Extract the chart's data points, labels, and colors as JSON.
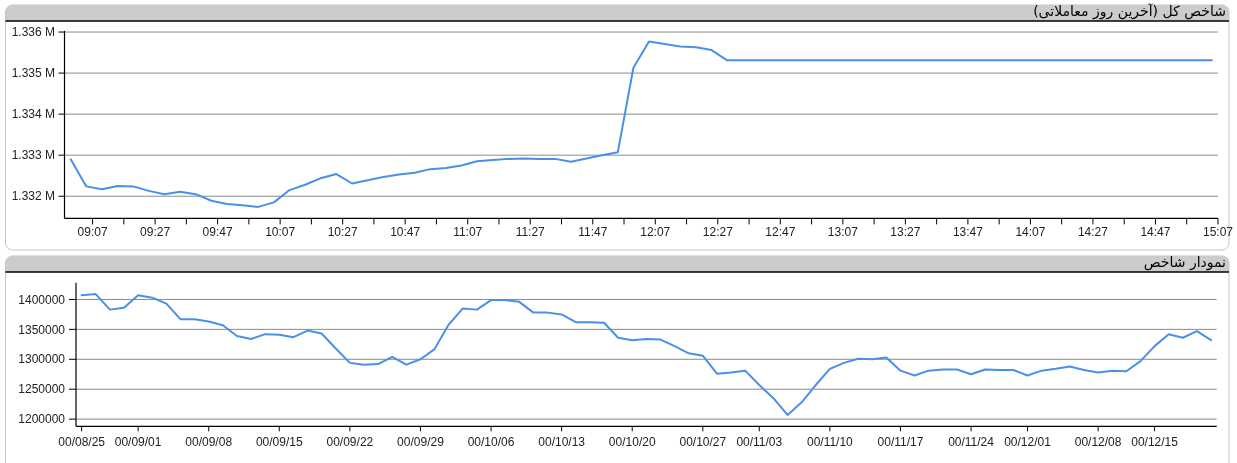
{
  "chart_data": [
    {
      "type": "line",
      "title": "شاخص کل (آخرین روز معاملاتی)",
      "x": [
        9.0,
        9.0833,
        9.1667,
        9.25,
        9.3333,
        9.4167,
        9.5,
        9.5833,
        9.6667,
        9.75,
        9.8333,
        9.9167,
        10.0,
        10.0833,
        10.1667,
        10.25,
        10.3333,
        10.4167,
        10.5,
        10.5833,
        10.6667,
        10.75,
        10.8333,
        10.9167,
        11.0,
        11.0833,
        11.1667,
        11.25,
        11.3333,
        11.4167,
        11.5,
        11.5833,
        11.6667,
        11.75,
        11.8333,
        11.9167,
        12.0,
        12.0833,
        12.1667,
        12.25,
        12.3333,
        12.4167,
        12.5,
        15.0833
      ],
      "series": [
        {
          "color": "#4a90e8",
          "values": [
            1.3329,
            1.33224,
            1.33217,
            1.33225,
            1.33224,
            1.33213,
            1.33205,
            1.33211,
            1.33205,
            1.33189,
            1.33181,
            1.33178,
            1.33174,
            1.33185,
            1.33215,
            1.33228,
            1.33244,
            1.33254,
            1.33231,
            1.33239,
            1.33247,
            1.33253,
            1.33257,
            1.33266,
            1.33269,
            1.33275,
            1.33285,
            1.33288,
            1.33291,
            1.33292,
            1.33291,
            1.33291,
            1.33284,
            1.33292,
            1.333,
            1.33307,
            1.33513,
            1.33577,
            1.33571,
            1.33565,
            1.33563,
            1.33556,
            1.33531,
            1.33531
          ]
        }
      ],
      "xlim": [
        8.967,
        15.1167
      ],
      "xticks": [
        {
          "value": 9.1167,
          "label": "09:07"
        },
        {
          "value": 9.2833,
          "label": null
        },
        {
          "value": 9.45,
          "label": "09:27"
        },
        {
          "value": 9.6167,
          "label": null
        },
        {
          "value": 9.7833,
          "label": "09:47"
        },
        {
          "value": 9.95,
          "label": null
        },
        {
          "value": 10.1167,
          "label": "10:07"
        },
        {
          "value": 10.2833,
          "label": null
        },
        {
          "value": 10.45,
          "label": "10:27"
        },
        {
          "value": 10.6167,
          "label": null
        },
        {
          "value": 10.7833,
          "label": "10:47"
        },
        {
          "value": 10.95,
          "label": null
        },
        {
          "value": 11.1167,
          "label": "11:07"
        },
        {
          "value": 11.2833,
          "label": null
        },
        {
          "value": 11.45,
          "label": "11:27"
        },
        {
          "value": 11.6167,
          "label": null
        },
        {
          "value": 11.7833,
          "label": "11:47"
        },
        {
          "value": 11.95,
          "label": null
        },
        {
          "value": 12.1167,
          "label": "12:07"
        },
        {
          "value": 12.2833,
          "label": null
        },
        {
          "value": 12.45,
          "label": "12:27"
        },
        {
          "value": 12.6167,
          "label": null
        },
        {
          "value": 12.7833,
          "label": "12:47"
        },
        {
          "value": 12.95,
          "label": null
        },
        {
          "value": 13.1167,
          "label": "13:07"
        },
        {
          "value": 13.2833,
          "label": null
        },
        {
          "value": 13.45,
          "label": "13:27"
        },
        {
          "value": 13.6167,
          "label": null
        },
        {
          "value": 13.7833,
          "label": "13:47"
        },
        {
          "value": 13.95,
          "label": null
        },
        {
          "value": 14.1167,
          "label": "14:07"
        },
        {
          "value": 14.2833,
          "label": null
        },
        {
          "value": 14.45,
          "label": "14:27"
        },
        {
          "value": 14.6167,
          "label": null
        },
        {
          "value": 14.7833,
          "label": "14:47"
        },
        {
          "value": 14.95,
          "label": null
        },
        {
          "value": 15.1167,
          "label": "15:07"
        }
      ],
      "ylim": [
        1.33146,
        1.33603
      ],
      "yticks": [
        {
          "value": 1.332,
          "label": "1.332 M"
        },
        {
          "value": 1.333,
          "label": "1.333 M"
        },
        {
          "value": 1.334,
          "label": "1.334 M"
        },
        {
          "value": 1.335,
          "label": "1.335 M"
        },
        {
          "value": 1.336,
          "label": "1.336 M"
        }
      ],
      "grid": "y"
    },
    {
      "type": "line",
      "title": "نمودار شاخص",
      "categories": [
        "00/08/25",
        null,
        null,
        null,
        "00/09/01",
        null,
        null,
        null,
        null,
        "00/09/08",
        null,
        null,
        null,
        null,
        "00/09/15",
        null,
        null,
        null,
        null,
        "00/09/22",
        null,
        null,
        null,
        null,
        "00/09/29",
        null,
        null,
        null,
        null,
        "00/10/06",
        null,
        null,
        null,
        null,
        "00/10/13",
        null,
        null,
        null,
        null,
        "00/10/20",
        null,
        null,
        null,
        null,
        "00/10/27",
        null,
        null,
        null,
        "00/11/03",
        null,
        null,
        null,
        null,
        "00/11/10",
        null,
        null,
        null,
        null,
        "00/11/17",
        null,
        null,
        null,
        null,
        "00/11/24",
        null,
        null,
        null,
        "00/12/01",
        null,
        null,
        null,
        null,
        "00/12/08",
        null,
        null,
        null,
        "00/12/15",
        null,
        null,
        null,
        null
      ],
      "series": [
        {
          "color": "#4a90e8",
          "values": [
            1407000,
            1409000,
            1383000,
            1386000,
            1407000,
            1403000,
            1393000,
            1367000,
            1367000,
            1363000,
            1357000,
            1339000,
            1334000,
            1342000,
            1341000,
            1337000,
            1348000,
            1343000,
            1318000,
            1294000,
            1291000,
            1292000,
            1304000,
            1291000,
            1300000,
            1317000,
            1358000,
            1385000,
            1383000,
            1399000,
            1399000,
            1396000,
            1378000,
            1378000,
            1375000,
            1362000,
            1362000,
            1361000,
            1336000,
            1332000,
            1334000,
            1333000,
            1322000,
            1310000,
            1306000,
            1276000,
            1278000,
            1281000,
            1257000,
            1235000,
            1207000,
            1228000,
            1257000,
            1284000,
            1294000,
            1301000,
            1300000,
            1303000,
            1281000,
            1273000,
            1281000,
            1283000,
            1283000,
            1275000,
            1283000,
            1282000,
            1282000,
            1273000,
            1281000,
            1284000,
            1288000,
            1282000,
            1278000,
            1281000,
            1280000,
            1297000,
            1322000,
            1342000,
            1336000,
            1347000,
            1332000
          ]
        }
      ],
      "ylim": [
        1188000,
        1428000
      ],
      "yticks": [
        1200000,
        1250000,
        1300000,
        1350000,
        1400000
      ],
      "grid": "y"
    }
  ]
}
